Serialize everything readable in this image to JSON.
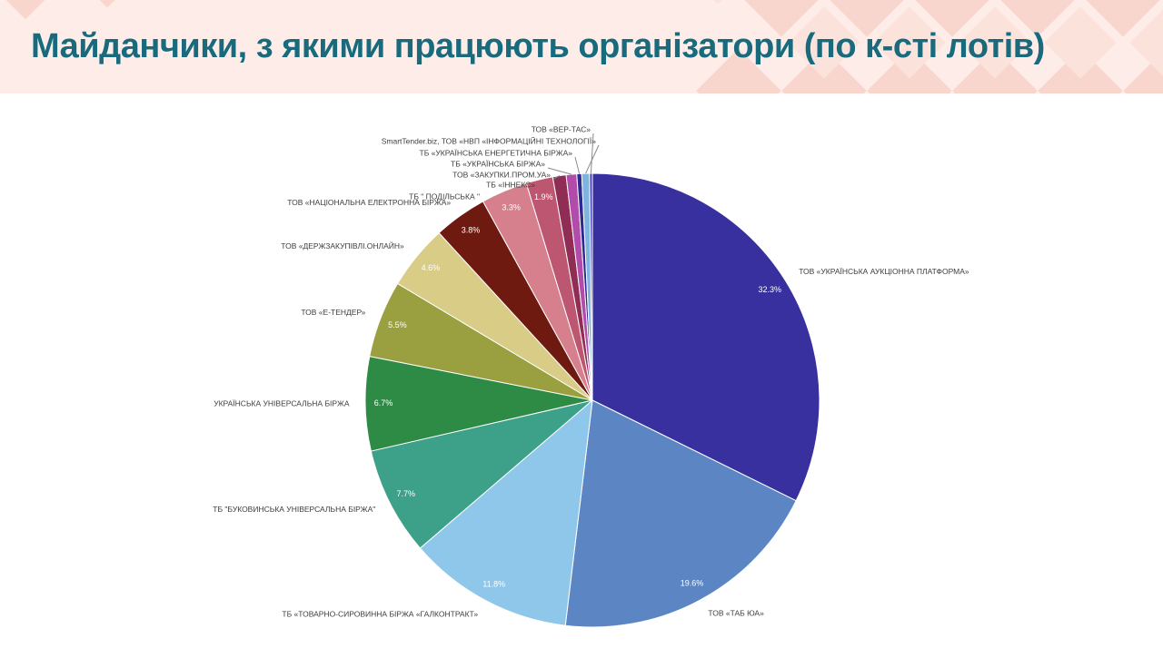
{
  "header": {
    "title": "Майданчики, з якими працюють організатори (по к-сті лотів)"
  },
  "theme": {
    "header_bg": "#fdece7",
    "diamond_color": "#f8d6cd",
    "diamond_color_light": "#fbe2db",
    "title_color": "#186a7c",
    "leader_line_color": "#8a8a8a"
  },
  "chart_data": {
    "type": "pie",
    "title": "Майданчики, з якими працюють організатори (по к-сті лотів)",
    "legend_position": "none",
    "labels_outside": true,
    "start_angle_deg": 0,
    "direction": "clockwise",
    "series": [
      {
        "label": "ТОВ «УКРАЇНСЬКА АУКЦІОННА ПЛАТФОРМА»",
        "value": 32.3,
        "pct_label": "32.3%",
        "color": "#38309e"
      },
      {
        "label": "ТОВ «ТАБ ЮА»",
        "value": 19.6,
        "pct_label": "19.6%",
        "color": "#5b86c3"
      },
      {
        "label": "ТБ «ТОВАРНО-СИРОВИННА БІРЖА «ГАЛКОНТРАКТ»",
        "value": 11.8,
        "pct_label": "11.8%",
        "color": "#8fc7ea"
      },
      {
        "label": "ТБ \"БУКОВИНСЬКА УНІВЕРСАЛЬНА БІРЖА\"",
        "value": 7.7,
        "pct_label": "7.7%",
        "color": "#3da089"
      },
      {
        "label": "УКРАЇНСЬКА УНІВЕРСАЛЬНА БІРЖА",
        "value": 6.7,
        "pct_label": "6.7%",
        "color": "#2e8b45"
      },
      {
        "label": "ТОВ «Е-ТЕНДЕР»",
        "value": 5.5,
        "pct_label": "5.5%",
        "color": "#9aa040"
      },
      {
        "label": "ТОВ «ДЕРЖЗАКУПІВЛІ.ОНЛАЙН»",
        "value": 4.6,
        "pct_label": "4.6%",
        "color": "#d8cc86"
      },
      {
        "label": "ТОВ «НАЦІОНАЛЬНА ЕЛЕКТРОННА БІРЖА»",
        "value": 3.8,
        "pct_label": "3.8%",
        "color": "#6e1a10"
      },
      {
        "label": "ТБ \" ПОДІЛЬСЬКА \"",
        "value": 3.3,
        "pct_label": "3.3%",
        "color": "#d5808c"
      },
      {
        "label": "ТБ «ІННЕКС»",
        "value": 1.9,
        "pct_label": "1.9%",
        "color": "#bc5671"
      },
      {
        "label": "ТОВ «ЗАКУПКИ.ПРОМ.УА»",
        "value": 0.95,
        "pct_label": "",
        "color": "#8f2d55"
      },
      {
        "label": "ТБ «УКРАЇНСЬКА БІРЖА»",
        "value": 0.75,
        "pct_label": "",
        "color": "#b14cab"
      },
      {
        "label": "ТБ «УКРАЇНСЬКА ЕНЕРГЕТИЧНА БІРЖА»",
        "value": 0.35,
        "pct_label": "",
        "color": "#2f2a8f"
      },
      {
        "label": "SmartTender.biz, ТОВ «НВП «ІНФОРМАЦІЙНІ ТЕХНОЛОГІЇ»",
        "value": 0.55,
        "pct_label": "",
        "color": "#7fb3e0"
      },
      {
        "label": "ТОВ «ВЕР-ТАС»",
        "value": 0.2,
        "pct_label": "",
        "color": "#4740ad"
      }
    ]
  }
}
